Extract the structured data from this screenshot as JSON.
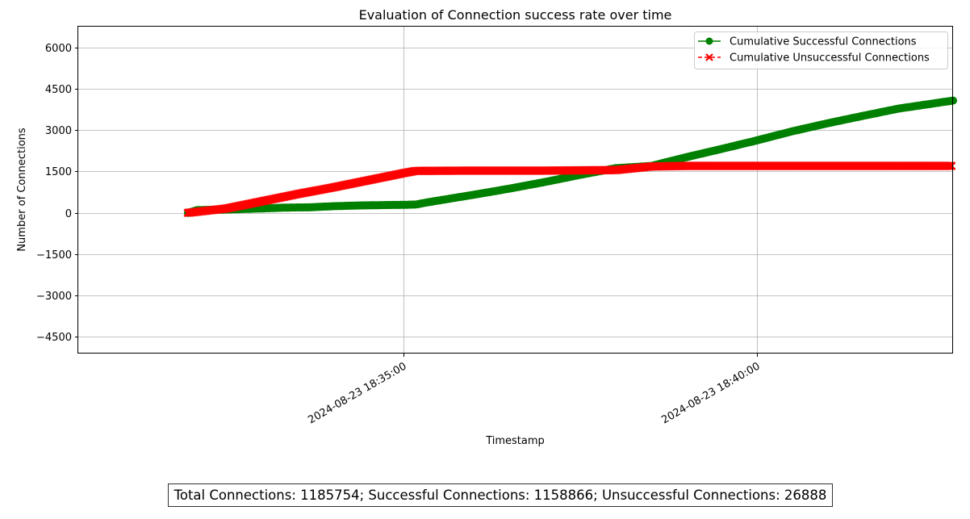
{
  "chart_data": {
    "type": "line",
    "title": "Evaluation of Connection success rate over time",
    "xlabel": "Timestamp",
    "ylabel": "Number of Connections",
    "x_ticks": [
      "2024-08-23 18:35:00",
      "2024-08-23 18:40:00"
    ],
    "y_ticks": [
      -4500,
      -3000,
      -1500,
      0,
      1500,
      3000,
      4500,
      6000
    ],
    "ylim": [
      -5100,
      6750
    ],
    "xlim": [
      "2024-08-23 18:30:24",
      "2024-08-23 18:42:46"
    ],
    "grid": true,
    "legend_position": "top-right",
    "series": [
      {
        "name": "Cumulative Successful Connections",
        "color": "#008000",
        "marker": "circle",
        "line_style": "solid",
        "points": [
          {
            "t": "2024-08-23 18:31:57",
            "y": 0
          },
          {
            "t": "2024-08-23 18:32:05",
            "y": 100
          },
          {
            "t": "2024-08-23 18:32:30",
            "y": 120
          },
          {
            "t": "2024-08-23 18:33:00",
            "y": 160
          },
          {
            "t": "2024-08-23 18:33:20",
            "y": 190
          },
          {
            "t": "2024-08-23 18:33:40",
            "y": 200
          },
          {
            "t": "2024-08-23 18:34:00",
            "y": 240
          },
          {
            "t": "2024-08-23 18:34:20",
            "y": 265
          },
          {
            "t": "2024-08-23 18:34:40",
            "y": 280
          },
          {
            "t": "2024-08-23 18:35:00",
            "y": 290
          },
          {
            "t": "2024-08-23 18:35:10",
            "y": 300
          },
          {
            "t": "2024-08-23 18:35:20",
            "y": 380
          },
          {
            "t": "2024-08-23 18:35:40",
            "y": 520
          },
          {
            "t": "2024-08-23 18:36:00",
            "y": 660
          },
          {
            "t": "2024-08-23 18:36:30",
            "y": 880
          },
          {
            "t": "2024-08-23 18:37:00",
            "y": 1120
          },
          {
            "t": "2024-08-23 18:37:30",
            "y": 1380
          },
          {
            "t": "2024-08-23 18:38:00",
            "y": 1620
          },
          {
            "t": "2024-08-23 18:38:30",
            "y": 1700
          },
          {
            "t": "2024-08-23 18:39:00",
            "y": 2020
          },
          {
            "t": "2024-08-23 18:39:30",
            "y": 2320
          },
          {
            "t": "2024-08-23 18:40:00",
            "y": 2630
          },
          {
            "t": "2024-08-23 18:40:30",
            "y": 2960
          },
          {
            "t": "2024-08-23 18:41:00",
            "y": 3250
          },
          {
            "t": "2024-08-23 18:41:30",
            "y": 3520
          },
          {
            "t": "2024-08-23 18:42:00",
            "y": 3780
          },
          {
            "t": "2024-08-23 18:42:46",
            "y": 4070
          }
        ]
      },
      {
        "name": "Cumulative Unsuccessful Connections",
        "color": "#ff0000",
        "marker": "x",
        "line_style": "dashed",
        "points": [
          {
            "t": "2024-08-23 18:31:57",
            "y": 0
          },
          {
            "t": "2024-08-23 18:32:30",
            "y": 160
          },
          {
            "t": "2024-08-23 18:33:00",
            "y": 420
          },
          {
            "t": "2024-08-23 18:33:30",
            "y": 680
          },
          {
            "t": "2024-08-23 18:34:00",
            "y": 920
          },
          {
            "t": "2024-08-23 18:34:30",
            "y": 1180
          },
          {
            "t": "2024-08-23 18:35:00",
            "y": 1440
          },
          {
            "t": "2024-08-23 18:35:10",
            "y": 1520
          },
          {
            "t": "2024-08-23 18:36:00",
            "y": 1530
          },
          {
            "t": "2024-08-23 18:37:00",
            "y": 1530
          },
          {
            "t": "2024-08-23 18:38:00",
            "y": 1550
          },
          {
            "t": "2024-08-23 18:38:30",
            "y": 1680
          },
          {
            "t": "2024-08-23 18:39:00",
            "y": 1700
          },
          {
            "t": "2024-08-23 18:40:00",
            "y": 1700
          },
          {
            "t": "2024-08-23 18:41:00",
            "y": 1700
          },
          {
            "t": "2024-08-23 18:42:00",
            "y": 1700
          },
          {
            "t": "2024-08-23 18:42:46",
            "y": 1700
          }
        ]
      }
    ]
  },
  "summary": {
    "text": "Total Connections: 1185754; Successful Connections: 1158866; Unsuccessful Connections: 26888"
  }
}
